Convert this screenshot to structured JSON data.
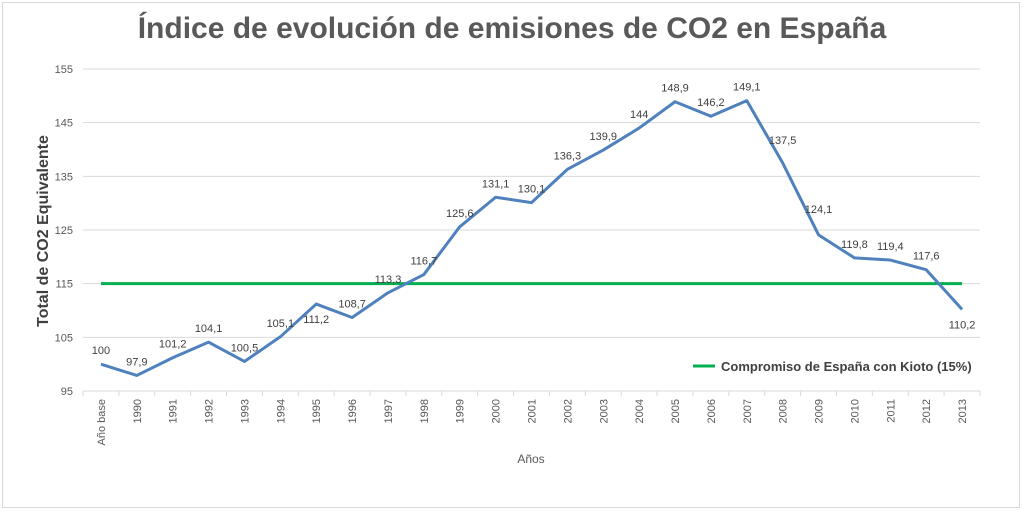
{
  "chart_data": {
    "type": "line",
    "title": "Índice de evolución de emisiones de CO2 en España",
    "xlabel": "Años",
    "ylabel": "Total de CO2 Equivalente",
    "ylim": [
      95,
      155
    ],
    "yticks": [
      "95",
      "105",
      "115",
      "125",
      "135",
      "145",
      "155"
    ],
    "grid": true,
    "legend_position": "bottom-right",
    "categories": [
      "Año base",
      "1990",
      "1991",
      "1992",
      "1993",
      "1994",
      "1995",
      "1996",
      "1997",
      "1998",
      "1999",
      "2000",
      "2001",
      "2002",
      "2003",
      "2004",
      "2005",
      "2006",
      "2007",
      "2008",
      "2009",
      "2010",
      "2011",
      "2012",
      "2013"
    ],
    "series": [
      {
        "values": [
          100,
          97.9,
          101.2,
          104.1,
          100.5,
          105.1,
          111.2,
          108.7,
          113.3,
          116.7,
          125.6,
          131.1,
          130.1,
          136.3,
          139.9,
          144,
          148.9,
          146.2,
          149.1,
          137.5,
          124.1,
          119.8,
          119.4,
          117.6,
          110.2
        ],
        "labels": [
          "100",
          "97,9",
          "101,2",
          "104,1",
          "100,5",
          "105,1",
          "111,2",
          "108,7",
          "113,3",
          "116,7",
          "125,6",
          "131,1",
          "130,1",
          "136,3",
          "139,9",
          "144",
          "148,9",
          "146,2",
          "149,1",
          "137,5",
          "124,1",
          "119,8",
          "119,4",
          "117,6",
          "110,2"
        ],
        "color": "#4f81bd"
      },
      {
        "name": "Compromiso de España con Kioto (15%)",
        "values": [
          115,
          115,
          115,
          115,
          115,
          115,
          115,
          115,
          115,
          115,
          115,
          115,
          115,
          115,
          115,
          115,
          115,
          115,
          115,
          115,
          115,
          115,
          115,
          115,
          115
        ],
        "color": "#00b050"
      }
    ]
  }
}
